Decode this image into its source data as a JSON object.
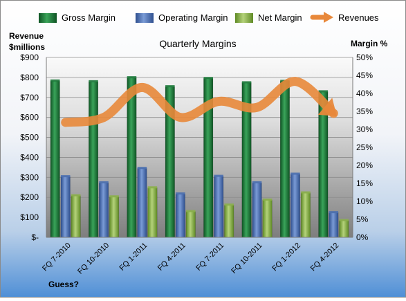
{
  "chart_data": {
    "type": "bar",
    "title": "Quarterly Margins",
    "left_axis_label_line1": "Revenue",
    "left_axis_label_line2": "$millions",
    "right_axis_label": "Margin %",
    "footnote": "Guess?",
    "categories": [
      "FQ 7-2010",
      "FQ 10-2010",
      "FQ 1-2011",
      "FQ 4-2011",
      "FQ 7-2011",
      "FQ 10-2011",
      "FQ 1-2012",
      "FQ 4-2012"
    ],
    "left_ticks": [
      "$-",
      "$100",
      "$200",
      "$300",
      "$400",
      "$500",
      "$600",
      "$700",
      "$800",
      "$900"
    ],
    "right_ticks": [
      "0%",
      "5%",
      "10%",
      "15%",
      "20%",
      "25%",
      "30%",
      "35%",
      "40%",
      "45%",
      "50%"
    ],
    "ylim_left": [
      0,
      900
    ],
    "ylim_right": [
      0,
      50
    ],
    "legend_position": "top",
    "series": [
      {
        "name": "Gross Margin",
        "axis": "right",
        "color": "#1e7a3c",
        "values": [
          43.5,
          43.3,
          44.4,
          41.9,
          44.2,
          43.0,
          43.4,
          40.5
        ]
      },
      {
        "name": "Operating Margin",
        "axis": "right",
        "color": "#4a6fb0",
        "values": [
          16.9,
          15.2,
          19.2,
          12.1,
          17.0,
          15.2,
          17.6,
          6.9
        ]
      },
      {
        "name": "Net Margin",
        "axis": "right",
        "color": "#8bb04a",
        "values": [
          11.6,
          11.3,
          13.8,
          7.2,
          9.0,
          10.4,
          12.4,
          4.7
        ]
      },
      {
        "name": "Revenues",
        "axis": "left",
        "color": "#e8883a",
        "type": "line",
        "values": [
          575,
          600,
          750,
          600,
          680,
          650,
          780,
          620
        ]
      }
    ]
  }
}
